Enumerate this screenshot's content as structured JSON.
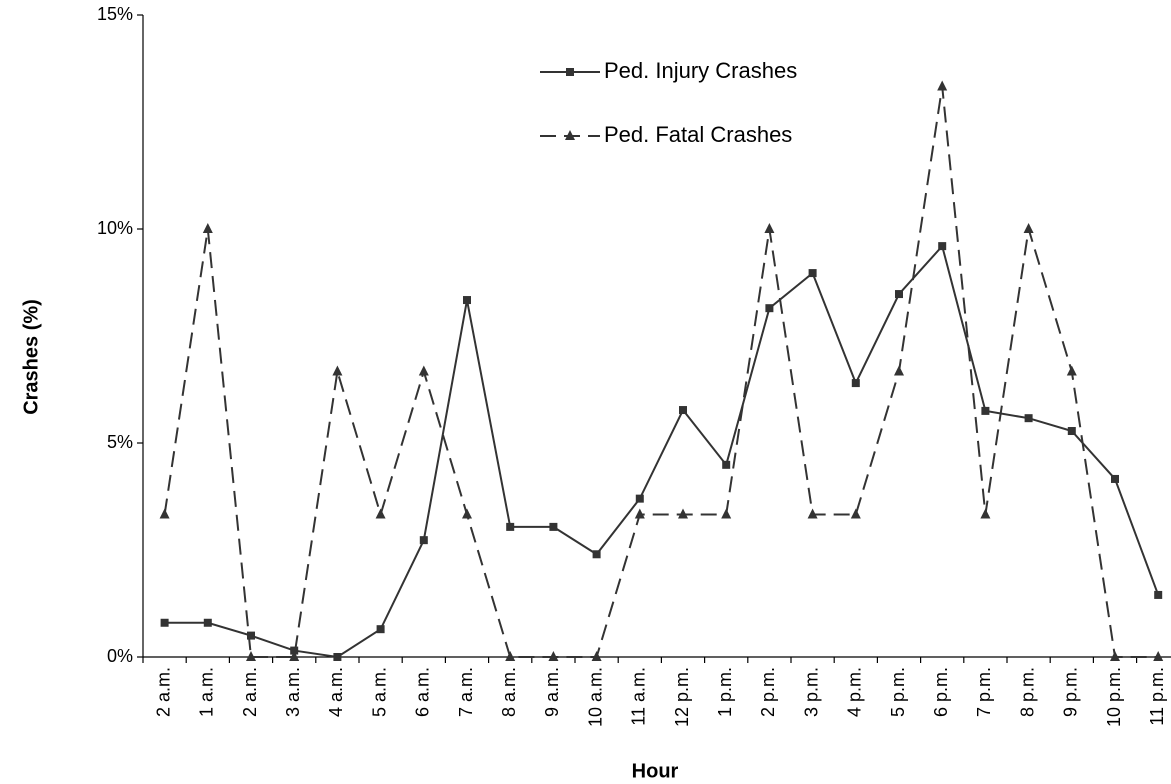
{
  "chart_data": {
    "type": "line",
    "x_label": "Hour",
    "y_label": "Crashes (%)",
    "categories": [
      "2 a.m.",
      "1 a.m.",
      "2 a.m.",
      "3 a.m.",
      "4 a.m.",
      "5 a.m.",
      "6 a.m.",
      "7 a.m.",
      "8 a.m.",
      "9 a.m.",
      "10 a.m.",
      "11 a.m.",
      "12 p.m.",
      "1 p.m.",
      "2 p.m.",
      "3 p.m.",
      "4 p.m.",
      "5 p.m.",
      "6 p.m.",
      "7 p.m.",
      "8 p.m.",
      "9 p.m.",
      "10 p.m.",
      "11 p.m."
    ],
    "series": [
      {
        "name": "Ped. Injury Crashes",
        "color": "#333333",
        "dash": "solid",
        "marker": "square",
        "values": [
          0.8,
          0.8,
          0.5,
          0.15,
          0,
          0.65,
          2.73,
          8.34,
          3.04,
          3.04,
          2.4,
          3.7,
          5.77,
          4.49,
          8.15,
          8.97,
          6.4,
          8.48,
          9.6,
          5.75,
          5.58,
          5.28,
          4.16,
          1.45
        ]
      },
      {
        "name": "Ped. Fatal Crashes",
        "color": "#333333",
        "dash": "dashed",
        "marker": "triangle",
        "values": [
          3.33,
          10,
          0,
          0,
          6.67,
          3.33,
          6.67,
          3.33,
          0,
          0,
          0,
          3.33,
          3.33,
          3.33,
          10,
          3.33,
          3.33,
          6.67,
          13.33,
          3.33,
          10,
          6.67,
          0,
          0
        ]
      }
    ],
    "ylim": [
      0,
      15
    ],
    "yticks": [
      {
        "value": 0,
        "label": "0%"
      },
      {
        "value": 5,
        "label": "5%"
      },
      {
        "value": 10,
        "label": "10%"
      },
      {
        "value": 15,
        "label": "15%"
      }
    ],
    "grid": false
  }
}
